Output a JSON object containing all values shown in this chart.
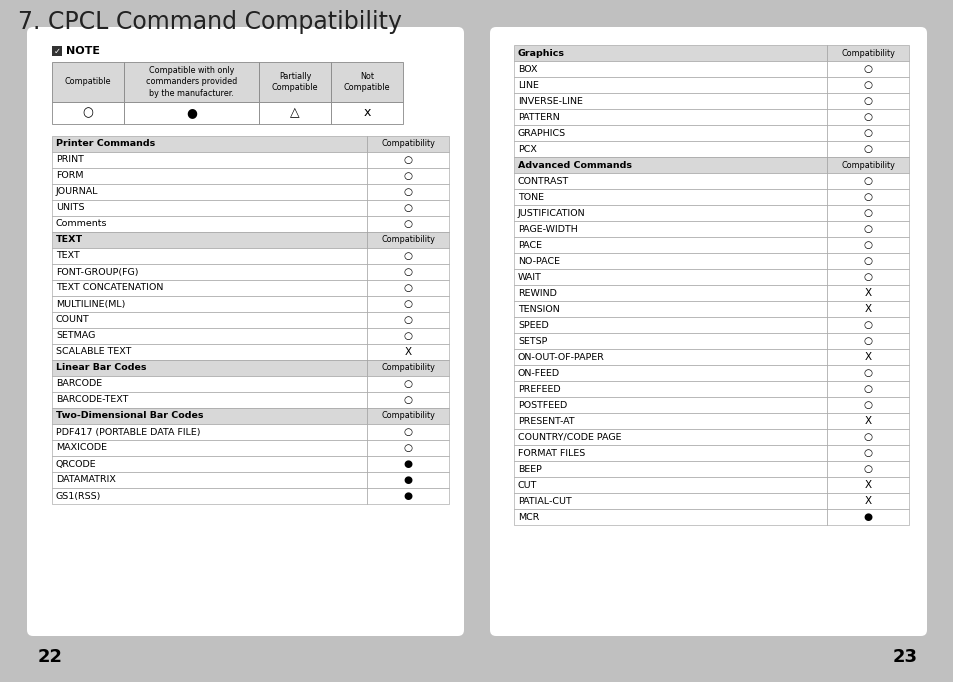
{
  "title": "7. CPCL Command Compatibility",
  "bg_color": "#c0c0c0",
  "page_left_num": "22",
  "page_right_num": "23",
  "legend_headers": [
    "Compatible",
    "Compatible with only\ncommanders provided\nby the manufacturer.",
    "Partially\nCompatible",
    "Not\nCompatible"
  ],
  "legend_symbols": [
    "○",
    "●",
    "△",
    "x"
  ],
  "left_table": [
    {
      "label": "Printer Commands",
      "compat": "Compatibility",
      "is_header": true
    },
    {
      "label": "PRINT",
      "compat": "○",
      "is_header": false
    },
    {
      "label": "FORM",
      "compat": "○",
      "is_header": false
    },
    {
      "label": "JOURNAL",
      "compat": "○",
      "is_header": false
    },
    {
      "label": "UNITS",
      "compat": "○",
      "is_header": false
    },
    {
      "label": "Comments",
      "compat": "○",
      "is_header": false
    },
    {
      "label": "TEXT",
      "compat": "Compatibility",
      "is_header": true
    },
    {
      "label": "TEXT",
      "compat": "○",
      "is_header": false
    },
    {
      "label": "FONT-GROUP(FG)",
      "compat": "○",
      "is_header": false
    },
    {
      "label": "TEXT CONCATENATION",
      "compat": "○",
      "is_header": false
    },
    {
      "label": "MULTILINE(ML)",
      "compat": "○",
      "is_header": false
    },
    {
      "label": "COUNT",
      "compat": "○",
      "is_header": false
    },
    {
      "label": "SETMAG",
      "compat": "○",
      "is_header": false
    },
    {
      "label": "SCALABLE TEXT",
      "compat": "X",
      "is_header": false
    },
    {
      "label": "Linear Bar Codes",
      "compat": "Compatibility",
      "is_header": true
    },
    {
      "label": "BARCODE",
      "compat": "○",
      "is_header": false
    },
    {
      "label": "BARCODE-TEXT",
      "compat": "○",
      "is_header": false
    },
    {
      "label": "Two-Dimensional Bar Codes",
      "compat": "Compatibility",
      "is_header": true
    },
    {
      "label": "PDF417 (PORTABLE DATA FILE)",
      "compat": "○",
      "is_header": false
    },
    {
      "label": "MAXICODE",
      "compat": "○",
      "is_header": false
    },
    {
      "label": "QRCODE",
      "compat": "●",
      "is_header": false
    },
    {
      "label": "DATAMATRIX",
      "compat": "●",
      "is_header": false
    },
    {
      "label": "GS1(RSS)",
      "compat": "●",
      "is_header": false
    }
  ],
  "right_table": [
    {
      "label": "Graphics",
      "compat": "Compatibility",
      "is_header": true
    },
    {
      "label": "BOX",
      "compat": "○",
      "is_header": false
    },
    {
      "label": "LINE",
      "compat": "○",
      "is_header": false
    },
    {
      "label": "INVERSE-LINE",
      "compat": "○",
      "is_header": false
    },
    {
      "label": "PATTERN",
      "compat": "○",
      "is_header": false
    },
    {
      "label": "GRAPHICS",
      "compat": "○",
      "is_header": false
    },
    {
      "label": "PCX",
      "compat": "○",
      "is_header": false
    },
    {
      "label": "Advanced Commands",
      "compat": "Compatibility",
      "is_header": true
    },
    {
      "label": "CONTRAST",
      "compat": "○",
      "is_header": false
    },
    {
      "label": "TONE",
      "compat": "○",
      "is_header": false
    },
    {
      "label": "JUSTIFICATION",
      "compat": "○",
      "is_header": false
    },
    {
      "label": "PAGE-WIDTH",
      "compat": "○",
      "is_header": false
    },
    {
      "label": "PACE",
      "compat": "○",
      "is_header": false
    },
    {
      "label": "NO-PACE",
      "compat": "○",
      "is_header": false
    },
    {
      "label": "WAIT",
      "compat": "○",
      "is_header": false
    },
    {
      "label": "REWIND",
      "compat": "X",
      "is_header": false
    },
    {
      "label": "TENSION",
      "compat": "X",
      "is_header": false
    },
    {
      "label": "SPEED",
      "compat": "○",
      "is_header": false
    },
    {
      "label": "SETSP",
      "compat": "○",
      "is_header": false
    },
    {
      "label": "ON-OUT-OF-PAPER",
      "compat": "X",
      "is_header": false
    },
    {
      "label": "ON-FEED",
      "compat": "○",
      "is_header": false
    },
    {
      "label": "PREFEED",
      "compat": "○",
      "is_header": false
    },
    {
      "label": "POSTFEED",
      "compat": "○",
      "is_header": false
    },
    {
      "label": "PRESENT-AT",
      "compat": "X",
      "is_header": false
    },
    {
      "label": "COUNTRY/CODE PAGE",
      "compat": "○",
      "is_header": false
    },
    {
      "label": "FORMAT FILES",
      "compat": "○",
      "is_header": false
    },
    {
      "label": "BEEP",
      "compat": "○",
      "is_header": false
    },
    {
      "label": "CUT",
      "compat": "X",
      "is_header": false
    },
    {
      "label": "PATIAL-CUT",
      "compat": "X",
      "is_header": false
    },
    {
      "label": "MCR",
      "compat": "●",
      "is_header": false
    }
  ]
}
